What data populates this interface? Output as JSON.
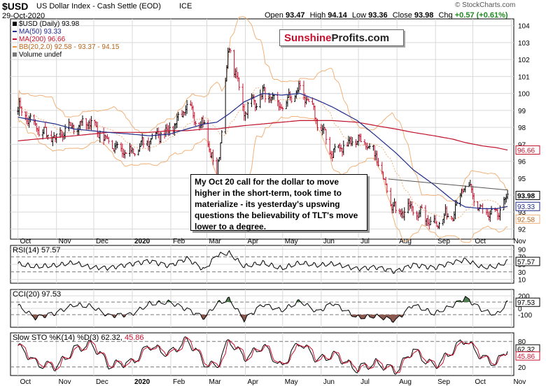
{
  "header": {
    "symbol": "$USD",
    "name": "US Dollar Index - Cash Settle (EOD)",
    "exchange": "ICE",
    "date": "29-Oct-2020",
    "open_label": "Open",
    "open": "93.47",
    "high_label": "High",
    "high": "94.14",
    "low_label": "Low",
    "low": "93.36",
    "close_label": "Close",
    "close": "93.98",
    "chg_label": "Chg",
    "chg": "+0.57 (+0.61%)",
    "watermark": "© StockCharts.com"
  },
  "legend": [
    {
      "text": "$USD (Daily) 93.98",
      "color": "#000000"
    },
    {
      "text": "MA(50) 93.33",
      "color": "#1f2a8a"
    },
    {
      "text": "MA(200) 96.66",
      "color": "#c0102a"
    },
    {
      "text": "BB(20,2.0) 92.58 - 93.37 - 94.15",
      "color": "#e39a4a"
    },
    {
      "text": "Volume undef",
      "color": "#555555"
    }
  ],
  "logo": {
    "part1": "Sunshine",
    "part2": "Profits.com"
  },
  "annotation": "My Oct 20 call for the dollar to move higher in the short-term, took time to materialize - its yesterday's  upswing questions the believability of TLT's move lower to a degree.",
  "panels": {
    "rsi": {
      "label": "RSI(14) 57.57",
      "value_tag": "57.57"
    },
    "cci": {
      "label": "CCI(20) 97.53",
      "value_tag": "97.53"
    },
    "sto": {
      "label_main": "Slow STO %K(14) %D(3) 62.32,",
      "label_d": "45.86",
      "value_k": "62.32",
      "value_d": "45.86"
    }
  },
  "colors": {
    "price_up": "#000000",
    "price_down": "#c8102e",
    "ma50": "#1f2a8a",
    "ma200": "#c0102a",
    "bb": "#f0b27a",
    "fill_green": "#4f7d4f",
    "fill_red": "#8a5a50",
    "grid": "#d9d9d9"
  },
  "chart_data": [
    {
      "type": "line",
      "title": "$USD (Daily) 93.98",
      "x_ticks": [
        "Oct",
        "Nov",
        "Dec",
        "2020",
        "Feb",
        "Mar",
        "Apr",
        "May",
        "Jun",
        "Jul",
        "Aug",
        "Sep",
        "Oct",
        "Nov"
      ],
      "y_ticks": [
        92,
        93,
        94,
        95,
        96,
        97,
        98,
        99,
        100,
        101,
        102,
        103,
        104
      ],
      "ylim": [
        91.4,
        104.4
      ],
      "x_dates": [
        "2019-10-01",
        "2019-10-15",
        "2019-10-31",
        "2019-11-15",
        "2019-11-29",
        "2019-12-13",
        "2019-12-31",
        "2020-01-15",
        "2020-01-31",
        "2020-02-14",
        "2020-02-28",
        "2020-03-09",
        "2020-03-19",
        "2020-03-31",
        "2020-04-15",
        "2020-04-30",
        "2020-05-15",
        "2020-05-29",
        "2020-06-10",
        "2020-06-30",
        "2020-07-15",
        "2020-07-31",
        "2020-08-14",
        "2020-08-31",
        "2020-09-15",
        "2020-09-25",
        "2020-10-09",
        "2020-10-20",
        "2020-10-29"
      ],
      "series": [
        {
          "name": "$USD",
          "values": [
            99.2,
            98.0,
            97.3,
            98.1,
            98.3,
            97.1,
            96.4,
            97.3,
            97.9,
            99.1,
            98.1,
            95.0,
            102.8,
            99.0,
            100.0,
            99.2,
            100.3,
            98.4,
            96.5,
            97.4,
            96.3,
            93.0,
            93.2,
            92.3,
            93.0,
            94.6,
            93.0,
            92.7,
            93.98
          ]
        },
        {
          "name": "MA(50)",
          "values": [
            98.6,
            98.4,
            98.2,
            97.9,
            97.8,
            97.7,
            97.6,
            97.5,
            97.6,
            97.9,
            98.2,
            98.3,
            98.8,
            99.5,
            100.0,
            99.9,
            100.0,
            99.6,
            99.2,
            98.4,
            97.5,
            96.5,
            95.5,
            94.6,
            93.7,
            93.3,
            93.2,
            93.2,
            93.33
          ]
        },
        {
          "name": "MA(200)",
          "values": [
            97.2,
            97.3,
            97.4,
            97.5,
            97.6,
            97.7,
            97.7,
            97.7,
            97.8,
            97.8,
            97.9,
            97.9,
            98.0,
            98.1,
            98.2,
            98.3,
            98.4,
            98.4,
            98.4,
            98.3,
            98.1,
            97.9,
            97.7,
            97.5,
            97.3,
            97.1,
            96.9,
            96.8,
            96.66
          ]
        }
      ]
    },
    {
      "type": "line",
      "title": "RSI(14) 57.57",
      "y_ticks": [
        10,
        30,
        50,
        70,
        90
      ],
      "ylim": [
        0,
        100
      ],
      "series": [
        {
          "name": "RSI",
          "values": [
            52,
            45,
            48,
            55,
            42,
            40,
            50,
            58,
            45,
            65,
            35,
            75,
            80,
            45,
            55,
            40,
            55,
            48,
            52,
            38,
            42,
            30,
            48,
            40,
            55,
            62,
            42,
            45,
            57.57
          ]
        }
      ]
    },
    {
      "type": "area",
      "title": "CCI(20) 97.53",
      "y_ticks": [
        -100,
        0,
        100,
        200
      ],
      "ylim": [
        -300,
        300
      ],
      "series": [
        {
          "name": "CCI",
          "values": [
            50,
            -150,
            -80,
            60,
            40,
            -120,
            -100,
            80,
            100,
            -20,
            -150,
            80,
            150,
            -180,
            60,
            -30,
            120,
            -60,
            80,
            -140,
            -120,
            -200,
            60,
            -80,
            50,
            160,
            -30,
            -100,
            97.53
          ]
        }
      ]
    },
    {
      "type": "line",
      "title": "Slow STO %K(14) %D(3)",
      "y_ticks": [
        20,
        45.86,
        62.32,
        80
      ],
      "ylim": [
        0,
        100
      ],
      "series": [
        {
          "name": "%K",
          "values": [
            70,
            30,
            20,
            60,
            75,
            25,
            30,
            70,
            50,
            85,
            30,
            20,
            85,
            40,
            70,
            20,
            80,
            35,
            50,
            15,
            30,
            10,
            60,
            20,
            60,
            85,
            40,
            30,
            62.32
          ]
        },
        {
          "name": "%D",
          "values": [
            65,
            35,
            25,
            55,
            70,
            30,
            32,
            65,
            55,
            80,
            35,
            25,
            80,
            45,
            65,
            25,
            75,
            40,
            48,
            18,
            28,
            12,
            55,
            25,
            55,
            80,
            45,
            35,
            45.86
          ]
        }
      ]
    }
  ]
}
